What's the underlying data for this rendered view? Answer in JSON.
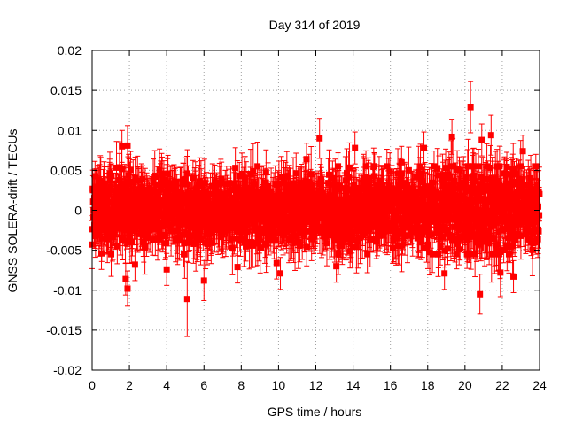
{
  "chart_data": {
    "type": "scatter",
    "title": "Day 314 of 2019",
    "xlabel": "GPS time / hours",
    "ylabel": "GNSS SOLERA-drift / TECUs",
    "xlim": [
      0,
      24
    ],
    "ylim": [
      -0.02,
      0.02
    ],
    "xticks": [
      0,
      2,
      4,
      6,
      8,
      10,
      12,
      14,
      16,
      18,
      20,
      22,
      24
    ],
    "xtick_labels": [
      "0",
      "2",
      "4",
      "6",
      "8",
      "10",
      "12",
      "14",
      "16",
      "18",
      "20",
      "22",
      "24"
    ],
    "yticks": [
      -0.02,
      -0.015,
      -0.01,
      -0.005,
      0,
      0.005,
      0.01,
      0.015,
      0.02
    ],
    "ytick_labels": [
      "-0.02",
      "-0.015",
      "-0.01",
      "-0.005",
      "0",
      "0.005",
      "0.01",
      "0.015",
      "0.02"
    ],
    "grid": true,
    "grid_style": "dotted",
    "series_color": "#ff0000",
    "error_bars": true,
    "notable_points": [
      {
        "x": 20.3,
        "y": 0.0129,
        "err": 0.0032
      },
      {
        "x": 5.1,
        "y": -0.0111,
        "err": 0.0047
      },
      {
        "x": 20.8,
        "y": -0.0105,
        "err": 0.0025
      },
      {
        "x": 1.9,
        "y": -0.0098,
        "err": 0.0022
      },
      {
        "x": 21.4,
        "y": 0.0094,
        "err": 0.0025
      },
      {
        "x": 19.3,
        "y": 0.0092,
        "err": 0.0022
      },
      {
        "x": 12.2,
        "y": 0.009,
        "err": 0.0025
      },
      {
        "x": 20.9,
        "y": 0.0088,
        "err": 0.002
      },
      {
        "x": 1.9,
        "y": 0.0081,
        "err": 0.0025
      },
      {
        "x": 1.6,
        "y": 0.008,
        "err": 0.002
      },
      {
        "x": 14.1,
        "y": 0.0078,
        "err": 0.002
      },
      {
        "x": 17.8,
        "y": 0.0078,
        "err": 0.002
      },
      {
        "x": 23.1,
        "y": 0.0074,
        "err": 0.002
      },
      {
        "x": 1.8,
        "y": -0.0086,
        "err": 0.002
      },
      {
        "x": 6.0,
        "y": -0.0088,
        "err": 0.0025
      },
      {
        "x": 10.1,
        "y": -0.0079,
        "err": 0.002
      },
      {
        "x": 18.9,
        "y": -0.0079,
        "err": 0.002
      },
      {
        "x": 22.6,
        "y": -0.0083,
        "err": 0.002
      },
      {
        "x": 4.0,
        "y": -0.0074,
        "err": 0.002
      },
      {
        "x": 7.8,
        "y": -0.0071,
        "err": 0.002
      },
      {
        "x": 0.5,
        "y": -0.0054,
        "err": 0.002
      },
      {
        "x": 2.3,
        "y": -0.0068,
        "err": 0.002
      },
      {
        "x": 21.9,
        "y": -0.0078,
        "err": 0.003
      },
      {
        "x": 23.8,
        "y": 0.0055,
        "err": 0.0015
      },
      {
        "x": 23.8,
        "y": -0.004,
        "err": 0.0015
      },
      {
        "x": 13.1,
        "y": -0.007,
        "err": 0.002
      },
      {
        "x": 9.9,
        "y": -0.0066,
        "err": 0.002
      },
      {
        "x": 16.6,
        "y": 0.006,
        "err": 0.002
      },
      {
        "x": 11.5,
        "y": 0.0064,
        "err": 0.002
      }
    ],
    "bulk_band": {
      "y_range": [
        -0.0055,
        0.0055
      ],
      "typical_err": 0.0025,
      "x_range": [
        0,
        24
      ]
    }
  }
}
